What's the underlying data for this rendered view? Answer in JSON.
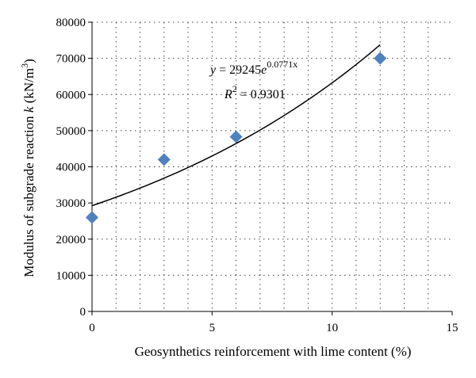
{
  "chart_data": {
    "type": "scatter",
    "title": "",
    "xlabel": "Geosynthetics reinforcement with lime content (%)",
    "ylabel_prefix": "Modulus of subgrade reaction ",
    "ylabel_var": "k",
    "ylabel_unit_open": " (kN/m",
    "ylabel_unit_exp": "3",
    "ylabel_unit_close": ")",
    "xlim": [
      0,
      15
    ],
    "ylim": [
      0,
      80000
    ],
    "xticks": [
      0,
      5,
      10,
      15
    ],
    "yticks": [
      0,
      10000,
      20000,
      30000,
      40000,
      50000,
      60000,
      70000,
      80000
    ],
    "xtick_labels": [
      "0",
      "5",
      "10",
      "15"
    ],
    "ytick_labels": [
      "0",
      "10000",
      "20000",
      "30000",
      "40000",
      "50000",
      "60000",
      "70000",
      "80000"
    ],
    "grid": true,
    "marker_color": "#4f81bd",
    "series": [
      {
        "x": [
          0,
          3,
          6,
          12
        ],
        "y": [
          26000,
          42000,
          48300,
          70000
        ]
      }
    ],
    "trendline": {
      "type": "exponential",
      "a": 29245,
      "b": 0.0771,
      "x_range": [
        0,
        12
      ],
      "color": "#000000"
    },
    "annotations": {
      "eq_y": "y",
      "eq_mid": " = 29245",
      "eq_e": "e",
      "eq_exp": "0.0771x",
      "r2_r": "R",
      "r2_exp": "2",
      "r2_val": " = 0.9301"
    }
  }
}
